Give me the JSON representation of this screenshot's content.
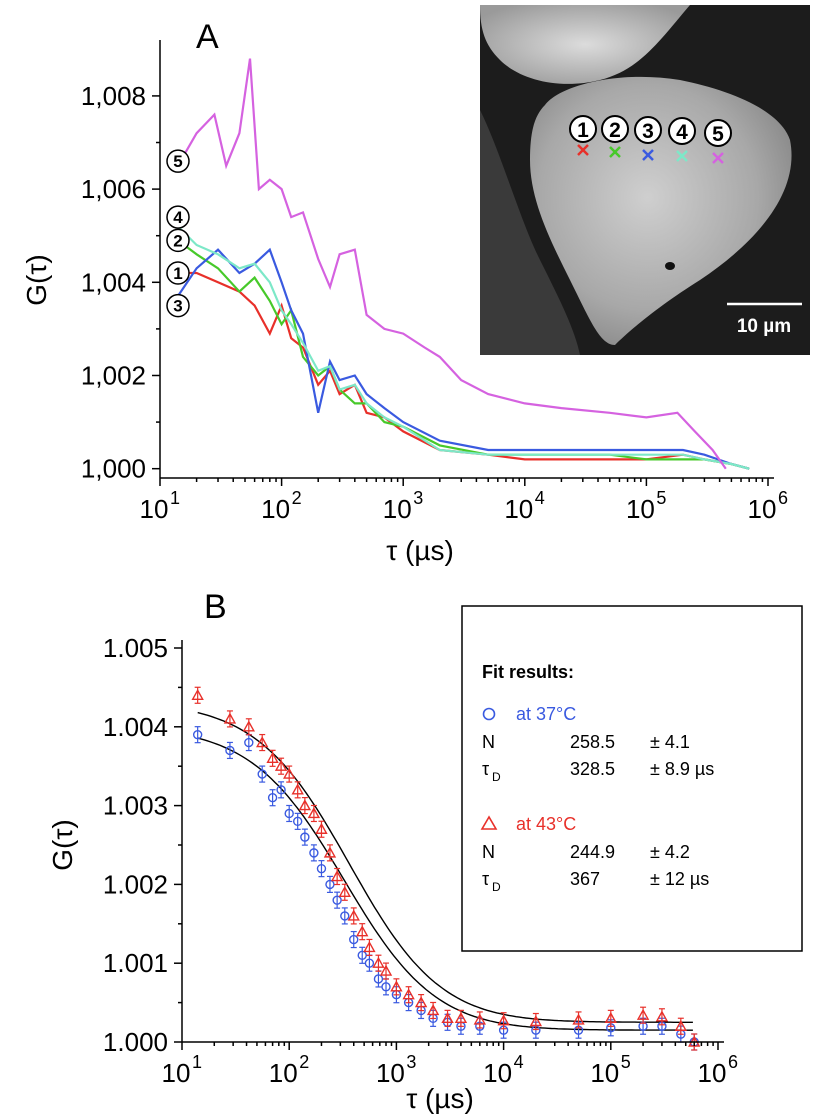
{
  "chart_data": [
    {
      "panel": "A",
      "type": "line",
      "xlabel": "τ (µs)",
      "ylabel": "G(τ)",
      "xscale": "log",
      "xlim": [
        10,
        1000000
      ],
      "ylim": [
        0.9998,
        1.0092
      ],
      "xticks": [
        "10",
        "10",
        "10",
        "10",
        "10",
        "10"
      ],
      "xtick_exponents": [
        "1",
        "2",
        "3",
        "4",
        "5",
        "6"
      ],
      "yticks": [
        "1,000",
        "1,002",
        "1,004",
        "1,006",
        "1,008"
      ],
      "ytick_values": [
        1.0,
        1.002,
        1.004,
        1.006,
        1.008
      ],
      "series": [
        {
          "name": "1",
          "color": "#e8302a",
          "x": [
            14,
            20,
            30,
            45,
            60,
            80,
            100,
            120,
            150,
            200,
            250,
            300,
            400,
            500,
            700,
            1000,
            2000,
            5000,
            10000,
            50000,
            100000,
            200000,
            300000,
            500000,
            700000
          ],
          "y": [
            1.0042,
            1.0042,
            1.004,
            1.0038,
            1.0035,
            1.0029,
            1.0035,
            1.0028,
            1.0026,
            1.0018,
            1.0021,
            1.0016,
            1.0018,
            1.0012,
            1.0011,
            1.0008,
            1.0004,
            1.0003,
            1.0002,
            1.0002,
            1.0002,
            1.0003,
            1.0002,
            1.0001,
            1.0
          ]
        },
        {
          "name": "2",
          "color": "#47c92a",
          "x": [
            14,
            20,
            30,
            45,
            60,
            80,
            100,
            120,
            150,
            200,
            250,
            300,
            400,
            500,
            700,
            1000,
            2000,
            5000,
            10000,
            50000,
            100000,
            200000,
            300000,
            500000,
            700000
          ],
          "y": [
            1.0049,
            1.0046,
            1.0043,
            1.0038,
            1.0041,
            1.0036,
            1.0031,
            1.0034,
            1.0024,
            1.002,
            1.0022,
            1.0017,
            1.0014,
            1.0014,
            1.001,
            1.0009,
            1.0005,
            1.0003,
            1.0003,
            1.0003,
            1.0002,
            1.0002,
            1.0002,
            1.0001,
            1.0
          ]
        },
        {
          "name": "3",
          "color": "#3a5ae0",
          "x": [
            14,
            20,
            30,
            45,
            60,
            80,
            100,
            120,
            150,
            200,
            250,
            300,
            400,
            500,
            700,
            1000,
            2000,
            5000,
            10000,
            50000,
            100000,
            200000,
            300000,
            500000,
            700000
          ],
          "y": [
            1.0037,
            1.0043,
            1.0047,
            1.0042,
            1.0044,
            1.0047,
            1.004,
            1.0034,
            1.0029,
            1.0012,
            1.0023,
            1.0019,
            1.002,
            1.0016,
            1.0013,
            1.001,
            1.0006,
            1.0004,
            1.0004,
            1.0004,
            1.0004,
            1.0004,
            1.0003,
            1.0001,
            1.0
          ]
        },
        {
          "name": "4",
          "color": "#7de8c8",
          "x": [
            14,
            20,
            30,
            45,
            60,
            80,
            100,
            120,
            150,
            200,
            250,
            300,
            400,
            500,
            700,
            1000,
            2000,
            5000,
            10000,
            50000,
            100000,
            200000,
            300000,
            500000,
            700000
          ],
          "y": [
            1.0052,
            1.0048,
            1.0046,
            1.0043,
            1.0044,
            1.004,
            1.0034,
            1.0031,
            1.0027,
            1.0021,
            1.0022,
            1.0017,
            1.0018,
            1.0014,
            1.0011,
            1.0009,
            1.0004,
            1.0003,
            1.0003,
            1.0003,
            1.0003,
            1.0003,
            1.0002,
            1.0001,
            1.0
          ]
        },
        {
          "name": "5",
          "color": "#d562e0",
          "x": [
            14,
            20,
            28,
            35,
            45,
            55,
            65,
            80,
            100,
            120,
            150,
            200,
            250,
            300,
            400,
            500,
            700,
            1000,
            1500,
            2000,
            3000,
            5000,
            10000,
            20000,
            50000,
            100000,
            180000,
            250000,
            350000,
            450000
          ],
          "y": [
            1.0065,
            1.0072,
            1.0076,
            1.0065,
            1.0072,
            1.0088,
            1.006,
            1.0062,
            1.006,
            1.0054,
            1.0055,
            1.0045,
            1.0039,
            1.0046,
            1.0047,
            1.0033,
            1.003,
            1.0029,
            1.0026,
            1.0024,
            1.0019,
            1.0016,
            1.0014,
            1.0013,
            1.0012,
            1.0011,
            1.0012,
            1.0008,
            1.0004,
            1.0
          ]
        }
      ],
      "curve_markers": [
        {
          "label": "5",
          "y": 1.0066
        },
        {
          "label": "4",
          "y": 1.0054
        },
        {
          "label": "2",
          "y": 1.0049
        },
        {
          "label": "1",
          "y": 1.0042
        },
        {
          "label": "3",
          "y": 1.0035
        }
      ],
      "inset": {
        "numbers": [
          "1",
          "2",
          "3",
          "4",
          "5"
        ],
        "cross_colors": [
          "#e8302a",
          "#47c92a",
          "#3a5ae0",
          "#7de8c8",
          "#d562e0"
        ],
        "scale_bar": "10 µm"
      }
    },
    {
      "panel": "B",
      "type": "scatter",
      "xlabel": "τ (µs)",
      "ylabel": "G(τ)",
      "xscale": "log",
      "xlim": [
        10,
        1000000
      ],
      "ylim": [
        1.0,
        1.005
      ],
      "xticks": [
        "10",
        "10",
        "10",
        "10",
        "10",
        "10"
      ],
      "xtick_exponents": [
        "1",
        "2",
        "3",
        "4",
        "5",
        "6"
      ],
      "yticks": [
        "1.000",
        "1.001",
        "1.002",
        "1.003",
        "1.004",
        "1.005"
      ],
      "ytick_values": [
        1.0,
        1.001,
        1.002,
        1.003,
        1.004,
        1.005
      ],
      "series": [
        {
          "name": "at 37°C",
          "marker": "circle",
          "color": "#3a5ae0",
          "x": [
            14,
            28,
            42,
            56,
            70,
            84,
            100,
            120,
            140,
            170,
            200,
            240,
            280,
            330,
            400,
            480,
            560,
            680,
            800,
            1000,
            1300,
            1700,
            2200,
            3000,
            4000,
            6000,
            10000,
            20000,
            50000,
            100000,
            200000,
            300000,
            450000,
            600000
          ],
          "y": [
            1.0039,
            1.0037,
            1.0038,
            1.0034,
            1.0031,
            1.0032,
            1.0029,
            1.0028,
            1.0026,
            1.0024,
            1.0022,
            1.002,
            1.0018,
            1.0016,
            1.0013,
            1.0011,
            1.001,
            1.0008,
            1.0007,
            1.0006,
            1.0005,
            1.0004,
            1.0003,
            1.00025,
            1.0002,
            1.0002,
            1.00015,
            1.00015,
            1.00015,
            1.00018,
            1.0002,
            1.0002,
            1.0001,
            1.0
          ]
        },
        {
          "name": "at 43°C",
          "marker": "triangle",
          "color": "#e8302a",
          "x": [
            14,
            28,
            42,
            56,
            70,
            84,
            100,
            120,
            140,
            170,
            200,
            240,
            280,
            330,
            400,
            480,
            560,
            680,
            800,
            1000,
            1300,
            1700,
            2200,
            3000,
            4000,
            6000,
            10000,
            20000,
            50000,
            100000,
            200000,
            300000,
            450000,
            600000
          ],
          "y": [
            1.0044,
            1.0041,
            1.004,
            1.0038,
            1.0036,
            1.0035,
            1.0034,
            1.0032,
            1.003,
            1.0029,
            1.0027,
            1.0024,
            1.0021,
            1.0019,
            1.0016,
            1.0014,
            1.0012,
            1.001,
            1.0009,
            1.0007,
            1.0006,
            1.0005,
            1.0004,
            1.0003,
            1.0003,
            1.00028,
            1.00027,
            1.00026,
            1.00028,
            1.0003,
            1.00034,
            1.00032,
            1.0002,
            1.0
          ]
        }
      ],
      "fit_curves": [
        {
          "name": "fit 37°C",
          "color": "#000000",
          "N": 258.5,
          "tauD": 328.5,
          "offset": 1.00015,
          "s": 5
        },
        {
          "name": "fit 43°C",
          "color": "#000000",
          "N": 244.9,
          "tauD": 367,
          "offset": 1.00025,
          "s": 5
        }
      ],
      "legend": {
        "title": "Fit results:",
        "entries": [
          {
            "marker": "circle",
            "color": "#3a5ae0",
            "label": "at 37°C",
            "rows": [
              {
                "param": "N",
                "sub": "",
                "value": "258.5",
                "err": "± 4.1"
              },
              {
                "param": "τ",
                "sub": "D",
                "value": "328.5",
                "err": "± 8.9 µs"
              }
            ]
          },
          {
            "marker": "triangle",
            "color": "#e8302a",
            "label": "at 43°C",
            "rows": [
              {
                "param": "N",
                "sub": "",
                "value": "244.9",
                "err": "± 4.2"
              },
              {
                "param": "τ",
                "sub": "D",
                "value": "367",
                "err": "± 12 µs"
              }
            ]
          }
        ]
      }
    }
  ]
}
